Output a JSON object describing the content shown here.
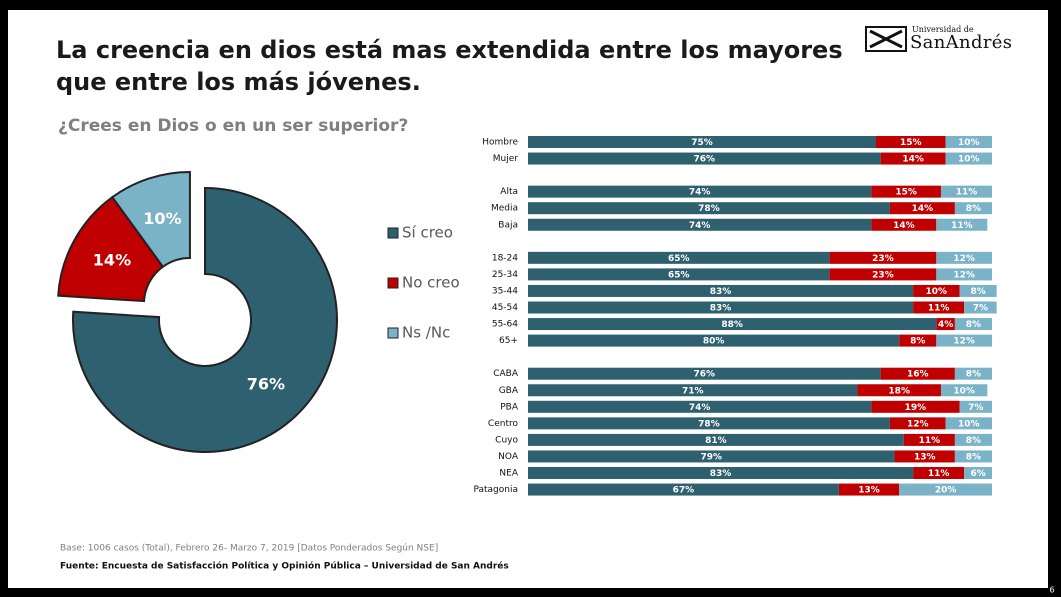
{
  "title": "La creencia en dios está mas extendida entre los mayores que entre los más jóvenes.",
  "logo": {
    "line1": "Universidad de",
    "line2": "SanAndrés"
  },
  "subtitle": "¿Crees en Dios o en un ser superior?",
  "chart_data": [
    {
      "type": "pie",
      "categories": [
        "Sí creo",
        "No creo",
        "Ns /Nc"
      ],
      "values": [
        76,
        14,
        10
      ],
      "value_labels": [
        "76%",
        "14%",
        "10%"
      ],
      "colors": [
        "#2e6070",
        "#c00000",
        "#7ab3c8"
      ]
    },
    {
      "type": "stacked-bar",
      "categories": [
        "Hombre",
        "Mujer",
        null,
        "Alta",
        "Media",
        "Baja",
        null,
        "18-24",
        "25-34",
        "35-44",
        "45-54",
        "55-64",
        "65+",
        null,
        "CABA",
        "GBA",
        "PBA",
        "Centro",
        "Cuyo",
        "NOA",
        "NEA",
        "Patagonia"
      ],
      "xlim": [
        0,
        100
      ],
      "series": [
        {
          "name": "Sí creo",
          "color": "#2e6070",
          "values": [
            75,
            76,
            null,
            74,
            78,
            74,
            null,
            65,
            65,
            83,
            83,
            88,
            80,
            null,
            76,
            71,
            74,
            78,
            81,
            79,
            83,
            67
          ],
          "value_labels": [
            "75%",
            "76%",
            null,
            "74%",
            "78%",
            "74%",
            null,
            "65%",
            "65%",
            "83%",
            "83%",
            "88%",
            "80%",
            null,
            "76%",
            "71%",
            "74%",
            "78%",
            "81%",
            "79%",
            "83%",
            "67%"
          ]
        },
        {
          "name": "No creo",
          "color": "#c00000",
          "values": [
            15,
            14,
            null,
            15,
            14,
            14,
            null,
            23,
            23,
            10,
            11,
            4,
            8,
            null,
            16,
            18,
            19,
            12,
            11,
            13,
            11,
            13
          ],
          "value_labels": [
            "15%",
            "14%",
            null,
            "15%",
            "14%",
            "14%",
            null,
            "23%",
            "23%",
            "10%",
            "11%",
            "4%",
            "8%",
            null,
            "16%",
            "18%",
            "19%",
            "12%",
            "11%",
            "13%",
            "11%",
            "13%"
          ]
        },
        {
          "name": "Ns /Nc",
          "color": "#7ab3c8",
          "values": [
            10,
            10,
            null,
            11,
            8,
            11,
            null,
            12,
            12,
            8,
            7,
            8,
            12,
            null,
            8,
            10,
            7,
            10,
            8,
            8,
            6,
            20
          ],
          "value_labels": [
            "10%",
            "10%",
            null,
            "11%",
            "8%",
            "11%",
            null,
            "12%",
            "12%",
            "8%",
            "7%",
            "8%",
            "12%",
            null,
            "8%",
            "10%",
            "7%",
            "10%",
            "8%",
            "8%",
            "6%",
            "20%"
          ]
        }
      ]
    }
  ],
  "note": "Base: 1006 casos (Total), Febrero 26- Marzo 7,  2019 [Datos Ponderados Según NSE]",
  "source": "Fuente: Encuesta de Satisfacción Política y Opinión Pública – Universidad de San Andrés",
  "page_number": 6
}
